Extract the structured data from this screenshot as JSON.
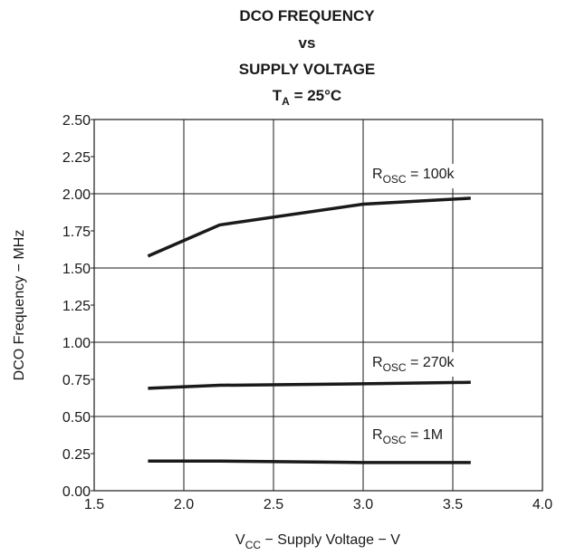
{
  "chart_data": {
    "type": "line",
    "title": {
      "line1": "DCO FREQUENCY",
      "line2": "vs",
      "line3": "SUPPLY VOLTAGE",
      "line4_main": "T",
      "line4_sub": "A",
      "line4_rest": " = 25°C"
    },
    "xlabel": {
      "main": "V",
      "sub": "CC",
      "rest": " − Supply Voltage − V"
    },
    "ylabel": "DCO Frequency − MHz",
    "xlim": [
      1.5,
      4.0
    ],
    "ylim": [
      0.0,
      2.5
    ],
    "x_ticks": [
      "1.5",
      "2.0",
      "2.5",
      "3.0",
      "3.5",
      "4.0"
    ],
    "y_ticks": [
      "0.00",
      "0.25",
      "0.50",
      "0.75",
      "1.00",
      "1.25",
      "1.50",
      "1.75",
      "2.00",
      "2.25",
      "2.50"
    ],
    "grid": true,
    "series": [
      {
        "label": {
          "main": "R",
          "sub": "OSC",
          "rest": " = 100k"
        },
        "x": [
          1.8,
          2.2,
          3.0,
          3.6
        ],
        "y": [
          1.58,
          1.79,
          1.93,
          1.97
        ]
      },
      {
        "label": {
          "main": "R",
          "sub": "OSC",
          "rest": " = 270k"
        },
        "x": [
          1.8,
          2.2,
          3.0,
          3.6
        ],
        "y": [
          0.69,
          0.71,
          0.72,
          0.73
        ]
      },
      {
        "label": {
          "main": "R",
          "sub": "OSC",
          "rest": " = 1M"
        },
        "x": [
          1.8,
          2.2,
          3.0,
          3.6
        ],
        "y": [
          0.2,
          0.2,
          0.19,
          0.19
        ]
      }
    ],
    "line_color": "#1a1a1a"
  }
}
